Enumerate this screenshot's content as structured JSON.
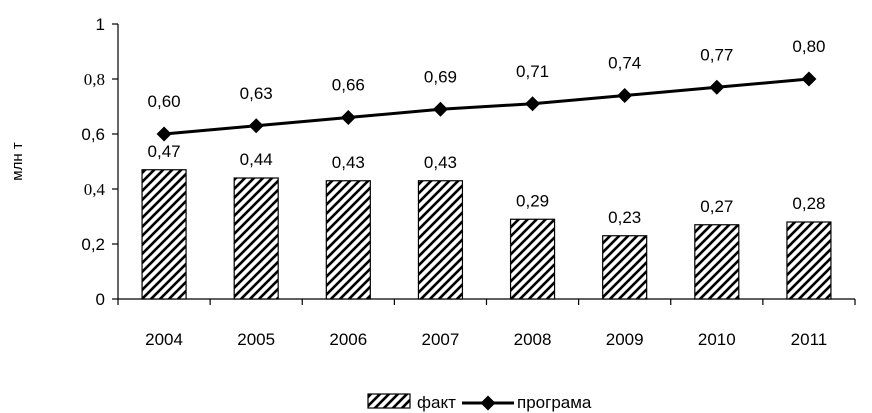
{
  "chart_data": {
    "type": "bar",
    "categories": [
      "2004",
      "2005",
      "2006",
      "2007",
      "2008",
      "2009",
      "2010",
      "2011"
    ],
    "series": [
      {
        "name": "факт",
        "type": "bar",
        "pattern": "diagonal-hatch",
        "values": [
          0.47,
          0.44,
          0.43,
          0.43,
          0.29,
          0.23,
          0.27,
          0.28
        ],
        "labels": [
          "0,47",
          "0,44",
          "0,43",
          "0,43",
          "0,29",
          "0,23",
          "0,27",
          "0,28"
        ]
      },
      {
        "name": "програма",
        "type": "line",
        "marker": "diamond",
        "values": [
          0.6,
          0.63,
          0.66,
          0.69,
          0.71,
          0.74,
          0.77,
          0.8
        ],
        "labels": [
          "0,60",
          "0,63",
          "0,66",
          "0,69",
          "0,71",
          "0,74",
          "0,77",
          "0,80"
        ]
      }
    ],
    "title": "",
    "xlabel": "",
    "ylabel": "млн т",
    "ylim": [
      0,
      1
    ],
    "yticks": [
      {
        "value": 0,
        "label": "0"
      },
      {
        "value": 0.2,
        "label": "0,2"
      },
      {
        "value": 0.4,
        "label": "0,4"
      },
      {
        "value": 0.6,
        "label": "0,6"
      },
      {
        "value": 0.8,
        "label": "0,8"
      },
      {
        "value": 1,
        "label": "1"
      }
    ],
    "grid": false,
    "legend": "bottom-center",
    "colors": {
      "bar_fill": "#ffffff",
      "bar_hatch": "#000000",
      "line": "#000000",
      "axis": "#000000"
    }
  }
}
